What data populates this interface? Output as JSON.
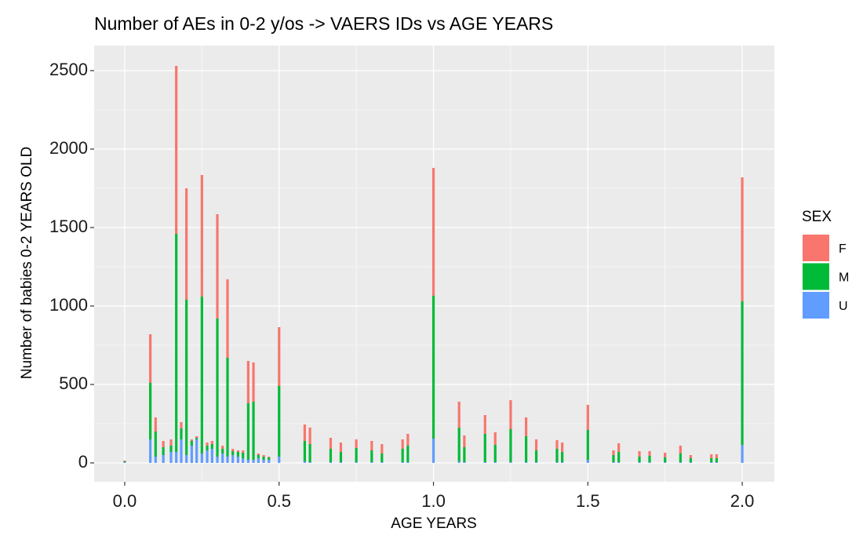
{
  "chart_data": {
    "type": "bar",
    "stacked": true,
    "title": "Number of AEs in 0-2 y/os  -> VAERS IDs vs AGE YEARS",
    "x_label": "AGE YEARS",
    "y_label": "Number of babies 0-2 YEARS OLD",
    "legend_title": "SEX",
    "legend_position": "right",
    "grid": true,
    "x": [
      0,
      0.083,
      0.1,
      0.125,
      0.15,
      0.167,
      0.183,
      0.2,
      0.217,
      0.233,
      0.25,
      0.267,
      0.283,
      0.3,
      0.317,
      0.333,
      0.35,
      0.367,
      0.383,
      0.4,
      0.417,
      0.433,
      0.45,
      0.467,
      0.5,
      0.583,
      0.6,
      0.667,
      0.7,
      0.75,
      0.8,
      0.833,
      0.9,
      0.917,
      1.0,
      1.083,
      1.1,
      1.167,
      1.2,
      1.25,
      1.3,
      1.333,
      1.4,
      1.417,
      1.5,
      1.583,
      1.6,
      1.667,
      1.7,
      1.75,
      1.8,
      1.833,
      1.9,
      1.917,
      2.0
    ],
    "series": [
      {
        "name": "F",
        "color": "#F8766D",
        "values": [
          5,
          310,
          90,
          40,
          40,
          1070,
          40,
          710,
          10,
          10,
          775,
          20,
          20,
          665,
          20,
          500,
          15,
          10,
          15,
          270,
          250,
          10,
          10,
          5,
          375,
          105,
          105,
          70,
          60,
          55,
          60,
          60,
          60,
          75,
          815,
          165,
          75,
          120,
          80,
          185,
          120,
          70,
          55,
          60,
          160,
          30,
          55,
          35,
          30,
          30,
          50,
          20,
          25,
          25,
          790
        ]
      },
      {
        "name": "M",
        "color": "#00BA38",
        "values": [
          5,
          360,
          160,
          50,
          40,
          1390,
          70,
          990,
          30,
          10,
          1000,
          30,
          30,
          880,
          30,
          630,
          25,
          30,
          35,
          360,
          370,
          20,
          20,
          15,
          450,
          130,
          115,
          85,
          65,
          90,
          75,
          55,
          85,
          105,
          910,
          215,
          95,
          180,
          110,
          210,
          165,
          75,
          85,
          65,
          190,
          45,
          65,
          35,
          40,
          30,
          55,
          25,
          25,
          25,
          915
        ]
      },
      {
        "name": "U",
        "color": "#619CFF",
        "values": [
          5,
          150,
          40,
          50,
          70,
          70,
          150,
          50,
          110,
          150,
          60,
          80,
          90,
          40,
          60,
          40,
          50,
          40,
          30,
          20,
          20,
          30,
          20,
          20,
          40,
          10,
          5,
          5,
          5,
          5,
          5,
          5,
          5,
          5,
          155,
          10,
          5,
          5,
          5,
          5,
          5,
          5,
          5,
          5,
          20,
          5,
          5,
          5,
          5,
          5,
          5,
          5,
          5,
          5,
          115
        ]
      }
    ],
    "xlim": [
      -0.099,
      2.104
    ],
    "ylim": [
      -120,
      2660
    ],
    "xticks": [
      {
        "value": 0,
        "label": "0.0"
      },
      0.5,
      {
        "value": 1,
        "label": "1.0"
      },
      1.5,
      {
        "value": 2,
        "label": "2.0"
      }
    ],
    "yticks": [
      0,
      500,
      1000,
      1500,
      2000,
      2500
    ]
  }
}
